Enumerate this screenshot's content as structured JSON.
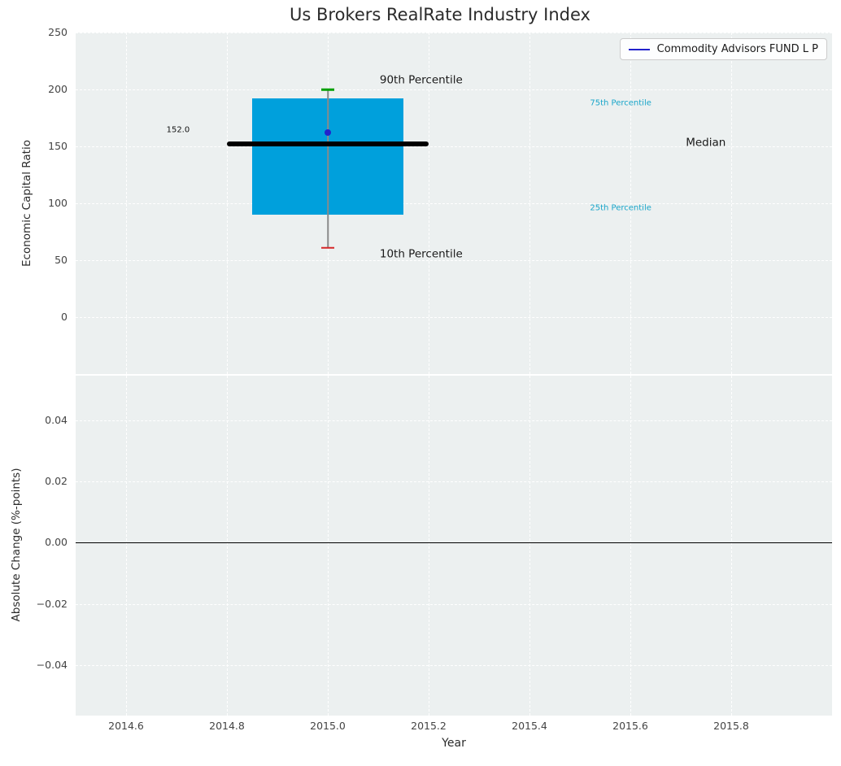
{
  "title": "Us Brokers RealRate Industry Index",
  "xlabel": "Year",
  "xlim": [
    2014.5,
    2016.0
  ],
  "xticks": [
    {
      "v": 2014.6,
      "label": "2014.6"
    },
    {
      "v": 2014.8,
      "label": "2014.8"
    },
    {
      "v": 2015.0,
      "label": "2015.0"
    },
    {
      "v": 2015.2,
      "label": "2015.2"
    },
    {
      "v": 2015.4,
      "label": "2015.4"
    },
    {
      "v": 2015.6,
      "label": "2015.6"
    },
    {
      "v": 2015.8,
      "label": "2015.8"
    }
  ],
  "legend": {
    "label": "Commodity Advisors FUND L P"
  },
  "colors": {
    "box": "#00a0dc",
    "median": "#000000",
    "whisker": "#8a8a8a",
    "cap_high": "#00a000",
    "cap_low": "#d62728",
    "dot": "#2222cc",
    "legend_line": "#2222cc",
    "percentile_text": "#18a5c9",
    "plot_bg": "#ecf0f0",
    "grid": "#ffffff"
  },
  "chart_data": [
    {
      "type": "boxplot",
      "panel": "top",
      "ylabel": "Economic Capital Ratio",
      "ylim": [
        -50,
        250
      ],
      "yticks": [
        {
          "v": 250,
          "label": "250"
        },
        {
          "v": 200,
          "label": "200"
        },
        {
          "v": 150,
          "label": "150"
        },
        {
          "v": 100,
          "label": "100"
        },
        {
          "v": 50,
          "label": "50"
        },
        {
          "v": 0,
          "label": "0"
        }
      ],
      "box": {
        "x": 2015.0,
        "box_left": 2014.85,
        "box_right": 2015.15,
        "median_left": 2014.8,
        "median_right": 2015.2,
        "q25": 90,
        "q75": 192,
        "median": 152,
        "whisker_low": 61,
        "whisker_high": 200,
        "fund_value": 162
      },
      "legend_entries": [
        "Commodity Advisors FUND L P"
      ],
      "annotations": [
        {
          "text": "90th Percentile",
          "x": 2015.103,
          "y": 208,
          "color": "#1a1a1a",
          "size": 13.5,
          "name": "annotation-90th-percentile"
        },
        {
          "text": "75th Percentile",
          "x": 2015.52,
          "y": 188,
          "color": "#18a5c9",
          "size": 10,
          "name": "annotation-75th-percentile"
        },
        {
          "text": "Median",
          "x": 2015.71,
          "y": 153,
          "color": "#1a1a1a",
          "size": 13.5,
          "name": "annotation-median"
        },
        {
          "text": "25th Percentile",
          "x": 2015.52,
          "y": 96,
          "color": "#18a5c9",
          "size": 10,
          "name": "annotation-25th-percentile"
        },
        {
          "text": "10th Percentile",
          "x": 2015.103,
          "y": 55,
          "color": "#1a1a1a",
          "size": 13.5,
          "name": "annotation-10th-percentile"
        },
        {
          "text": "152.0",
          "x": 2014.68,
          "y": 164,
          "color": "#111111",
          "size": 10,
          "name": "annotation-median-value"
        }
      ]
    },
    {
      "type": "line",
      "panel": "bottom",
      "ylabel": "Absolute Change (%-points)",
      "ylim": [
        -0.0565,
        0.0545
      ],
      "yticks": [
        {
          "v": 0.04,
          "label": "0.04"
        },
        {
          "v": 0.02,
          "label": "0.02"
        },
        {
          "v": 0.0,
          "label": "0.00"
        },
        {
          "v": -0.02,
          "label": "−0.02"
        },
        {
          "v": -0.04,
          "label": "−0.04"
        }
      ],
      "zero_line": 0,
      "annotations": []
    }
  ]
}
